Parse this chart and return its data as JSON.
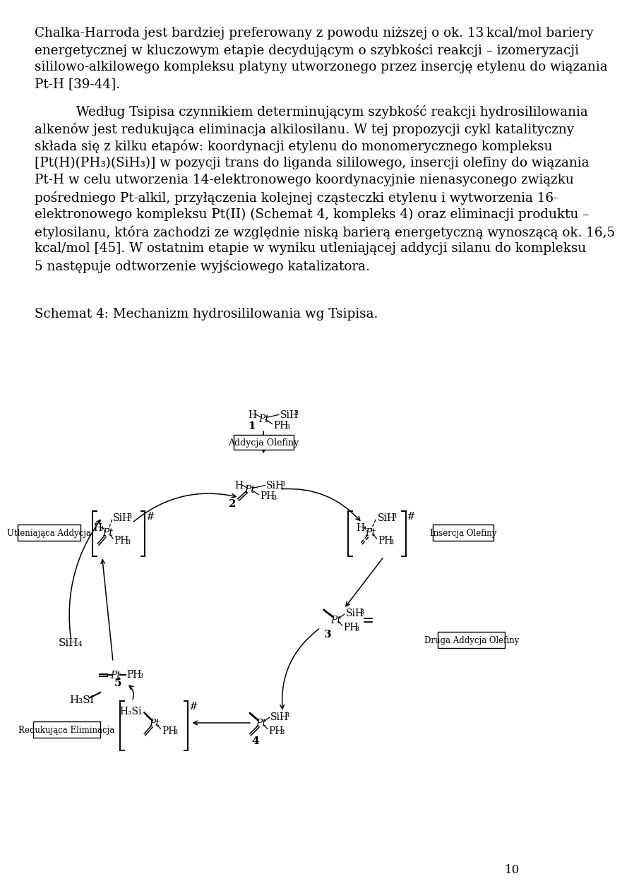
{
  "paragraph1": "Chalka-Harroda jest bardziej preferowany z powodu niższej o ok. 13 kcal/mol bariery energetycznej w kluczowym etapie decydującym o szybkości reakcji – izomeryzacji sililowo-alkilowego kompleksu platyny utworzonego przez insercję etylenu do wiązania Pt-H [39-44].",
  "paragraph2": "Według Tsipisa czynnikiem determinującym szybkość reakcji hydrosililowania alkenów jest redukująca eliminacja alkilosilanu. W tej propozycji cykl katalityczny składa się z kilku etapów: koordynacji etylenu do monomerycznego kompleksu [Pt(H)(PH₃)(SiH₃)] w pozycji trans do liganda sililowego, insercji olefiny do wiązania Pt-H w celu utworzenia 14-elektronowego koordynacyjnie nienasyconego związku pośredniego Pt-alkil, przyłączenia kolejnej cząsteczki etylenu i wytworzenia 16-elektronowego kompleksu Pt(II) (Schemat 4, kompleks 4) oraz eliminacji produktu – etylosilanu, która zachodzi ze względnie niską barierą energetyczną wynoszącą ok. 16,5 kcal/mol [45]. W ostatnim etapie w wyniku utleniającej addycji silanu do kompleksu 5 następuje odtworzenie wyjściowego katalizatora.",
  "schemat_label": "Schemat 4: Mechanizm hydrosililowania wg Tsipisa.",
  "page_number": "10",
  "bg_color": "#ffffff",
  "text_color": "#000000"
}
